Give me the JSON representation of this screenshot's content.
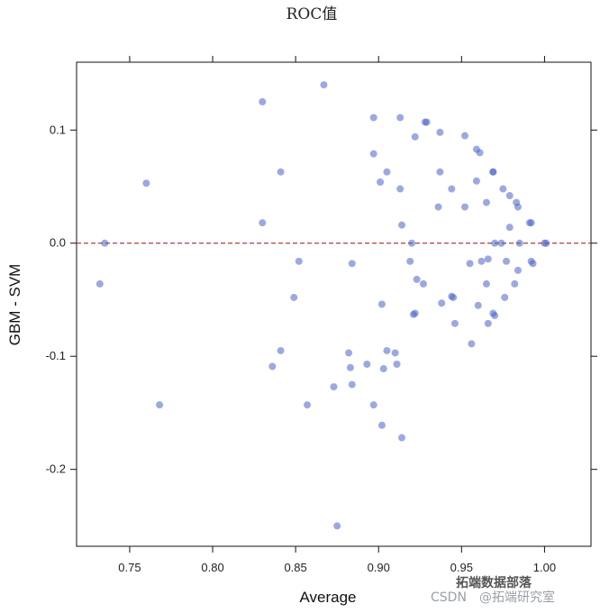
{
  "chart_data": {
    "type": "scatter",
    "title": "ROC值",
    "xlabel": "Average",
    "ylabel": "GBM - SVM",
    "xlim": [
      0.718,
      1.028
    ],
    "ylim": [
      -0.268,
      0.16
    ],
    "xticks": [
      0.75,
      0.8,
      0.85,
      0.9,
      0.95,
      1.0
    ],
    "xtick_labels": [
      "0.75",
      "0.80",
      "0.85",
      "0.90",
      "0.95",
      "1.00"
    ],
    "yticks": [
      -0.2,
      -0.1,
      0.0,
      0.1
    ],
    "ytick_labels": [
      "-0.2",
      "-0.1",
      "0.0",
      "0.1"
    ],
    "reference_line": {
      "y": 0,
      "style": "dashed",
      "color": "#b03a48"
    },
    "point_color": "#4a63c8",
    "grid": false,
    "points": [
      [
        0.732,
        -0.036
      ],
      [
        0.735,
        0.0
      ],
      [
        0.76,
        0.053
      ],
      [
        0.768,
        -0.143
      ],
      [
        0.83,
        0.125
      ],
      [
        0.83,
        0.018
      ],
      [
        0.836,
        -0.109
      ],
      [
        0.841,
        0.063
      ],
      [
        0.841,
        -0.095
      ],
      [
        0.849,
        -0.048
      ],
      [
        0.852,
        -0.016
      ],
      [
        0.857,
        -0.143
      ],
      [
        0.867,
        0.14
      ],
      [
        0.873,
        -0.127
      ],
      [
        0.875,
        -0.25
      ],
      [
        0.882,
        -0.097
      ],
      [
        0.883,
        -0.11
      ],
      [
        0.884,
        -0.018
      ],
      [
        0.884,
        -0.125
      ],
      [
        0.893,
        -0.107
      ],
      [
        0.897,
        0.111
      ],
      [
        0.897,
        0.079
      ],
      [
        0.897,
        -0.143
      ],
      [
        0.901,
        0.054
      ],
      [
        0.902,
        -0.054
      ],
      [
        0.902,
        -0.161
      ],
      [
        0.903,
        -0.111
      ],
      [
        0.905,
        0.063
      ],
      [
        0.905,
        -0.095
      ],
      [
        0.91,
        -0.097
      ],
      [
        0.911,
        -0.107
      ],
      [
        0.913,
        0.111
      ],
      [
        0.913,
        0.048
      ],
      [
        0.914,
        0.016
      ],
      [
        0.914,
        -0.172
      ],
      [
        0.919,
        -0.016
      ],
      [
        0.92,
        0.0
      ],
      [
        0.921,
        -0.063
      ],
      [
        0.922,
        -0.062
      ],
      [
        0.922,
        0.094
      ],
      [
        0.923,
        -0.032
      ],
      [
        0.927,
        -0.036
      ],
      [
        0.928,
        0.107
      ],
      [
        0.929,
        0.107
      ],
      [
        0.936,
        0.032
      ],
      [
        0.937,
        0.063
      ],
      [
        0.937,
        0.098
      ],
      [
        0.938,
        -0.053
      ],
      [
        0.944,
        0.048
      ],
      [
        0.944,
        -0.047
      ],
      [
        0.945,
        -0.048
      ],
      [
        0.946,
        -0.071
      ],
      [
        0.952,
        0.095
      ],
      [
        0.952,
        0.032
      ],
      [
        0.955,
        -0.018
      ],
      [
        0.956,
        -0.089
      ],
      [
        0.959,
        0.083
      ],
      [
        0.959,
        0.055
      ],
      [
        0.96,
        -0.055
      ],
      [
        0.961,
        0.08
      ],
      [
        0.962,
        -0.016
      ],
      [
        0.965,
        -0.036
      ],
      [
        0.965,
        0.036
      ],
      [
        0.966,
        -0.071
      ],
      [
        0.966,
        -0.014
      ],
      [
        0.969,
        0.063
      ],
      [
        0.969,
        0.063
      ],
      [
        0.969,
        -0.062
      ],
      [
        0.97,
        -0.064
      ],
      [
        0.97,
        0.0
      ],
      [
        0.974,
        0.0
      ],
      [
        0.975,
        0.048
      ],
      [
        0.976,
        -0.048
      ],
      [
        0.977,
        -0.016
      ],
      [
        0.979,
        0.014
      ],
      [
        0.979,
        0.042
      ],
      [
        0.982,
        -0.036
      ],
      [
        0.983,
        0.036
      ],
      [
        0.984,
        0.032
      ],
      [
        0.984,
        -0.024
      ],
      [
        0.985,
        0.0
      ],
      [
        0.991,
        0.018
      ],
      [
        0.992,
        0.018
      ],
      [
        0.992,
        -0.016
      ],
      [
        0.993,
        -0.018
      ],
      [
        1.0,
        0.0
      ],
      [
        1.001,
        0.0
      ]
    ]
  },
  "watermark": {
    "source": "CSDN",
    "handle": "@拓端研究室",
    "brand": "拓端数据部落"
  }
}
